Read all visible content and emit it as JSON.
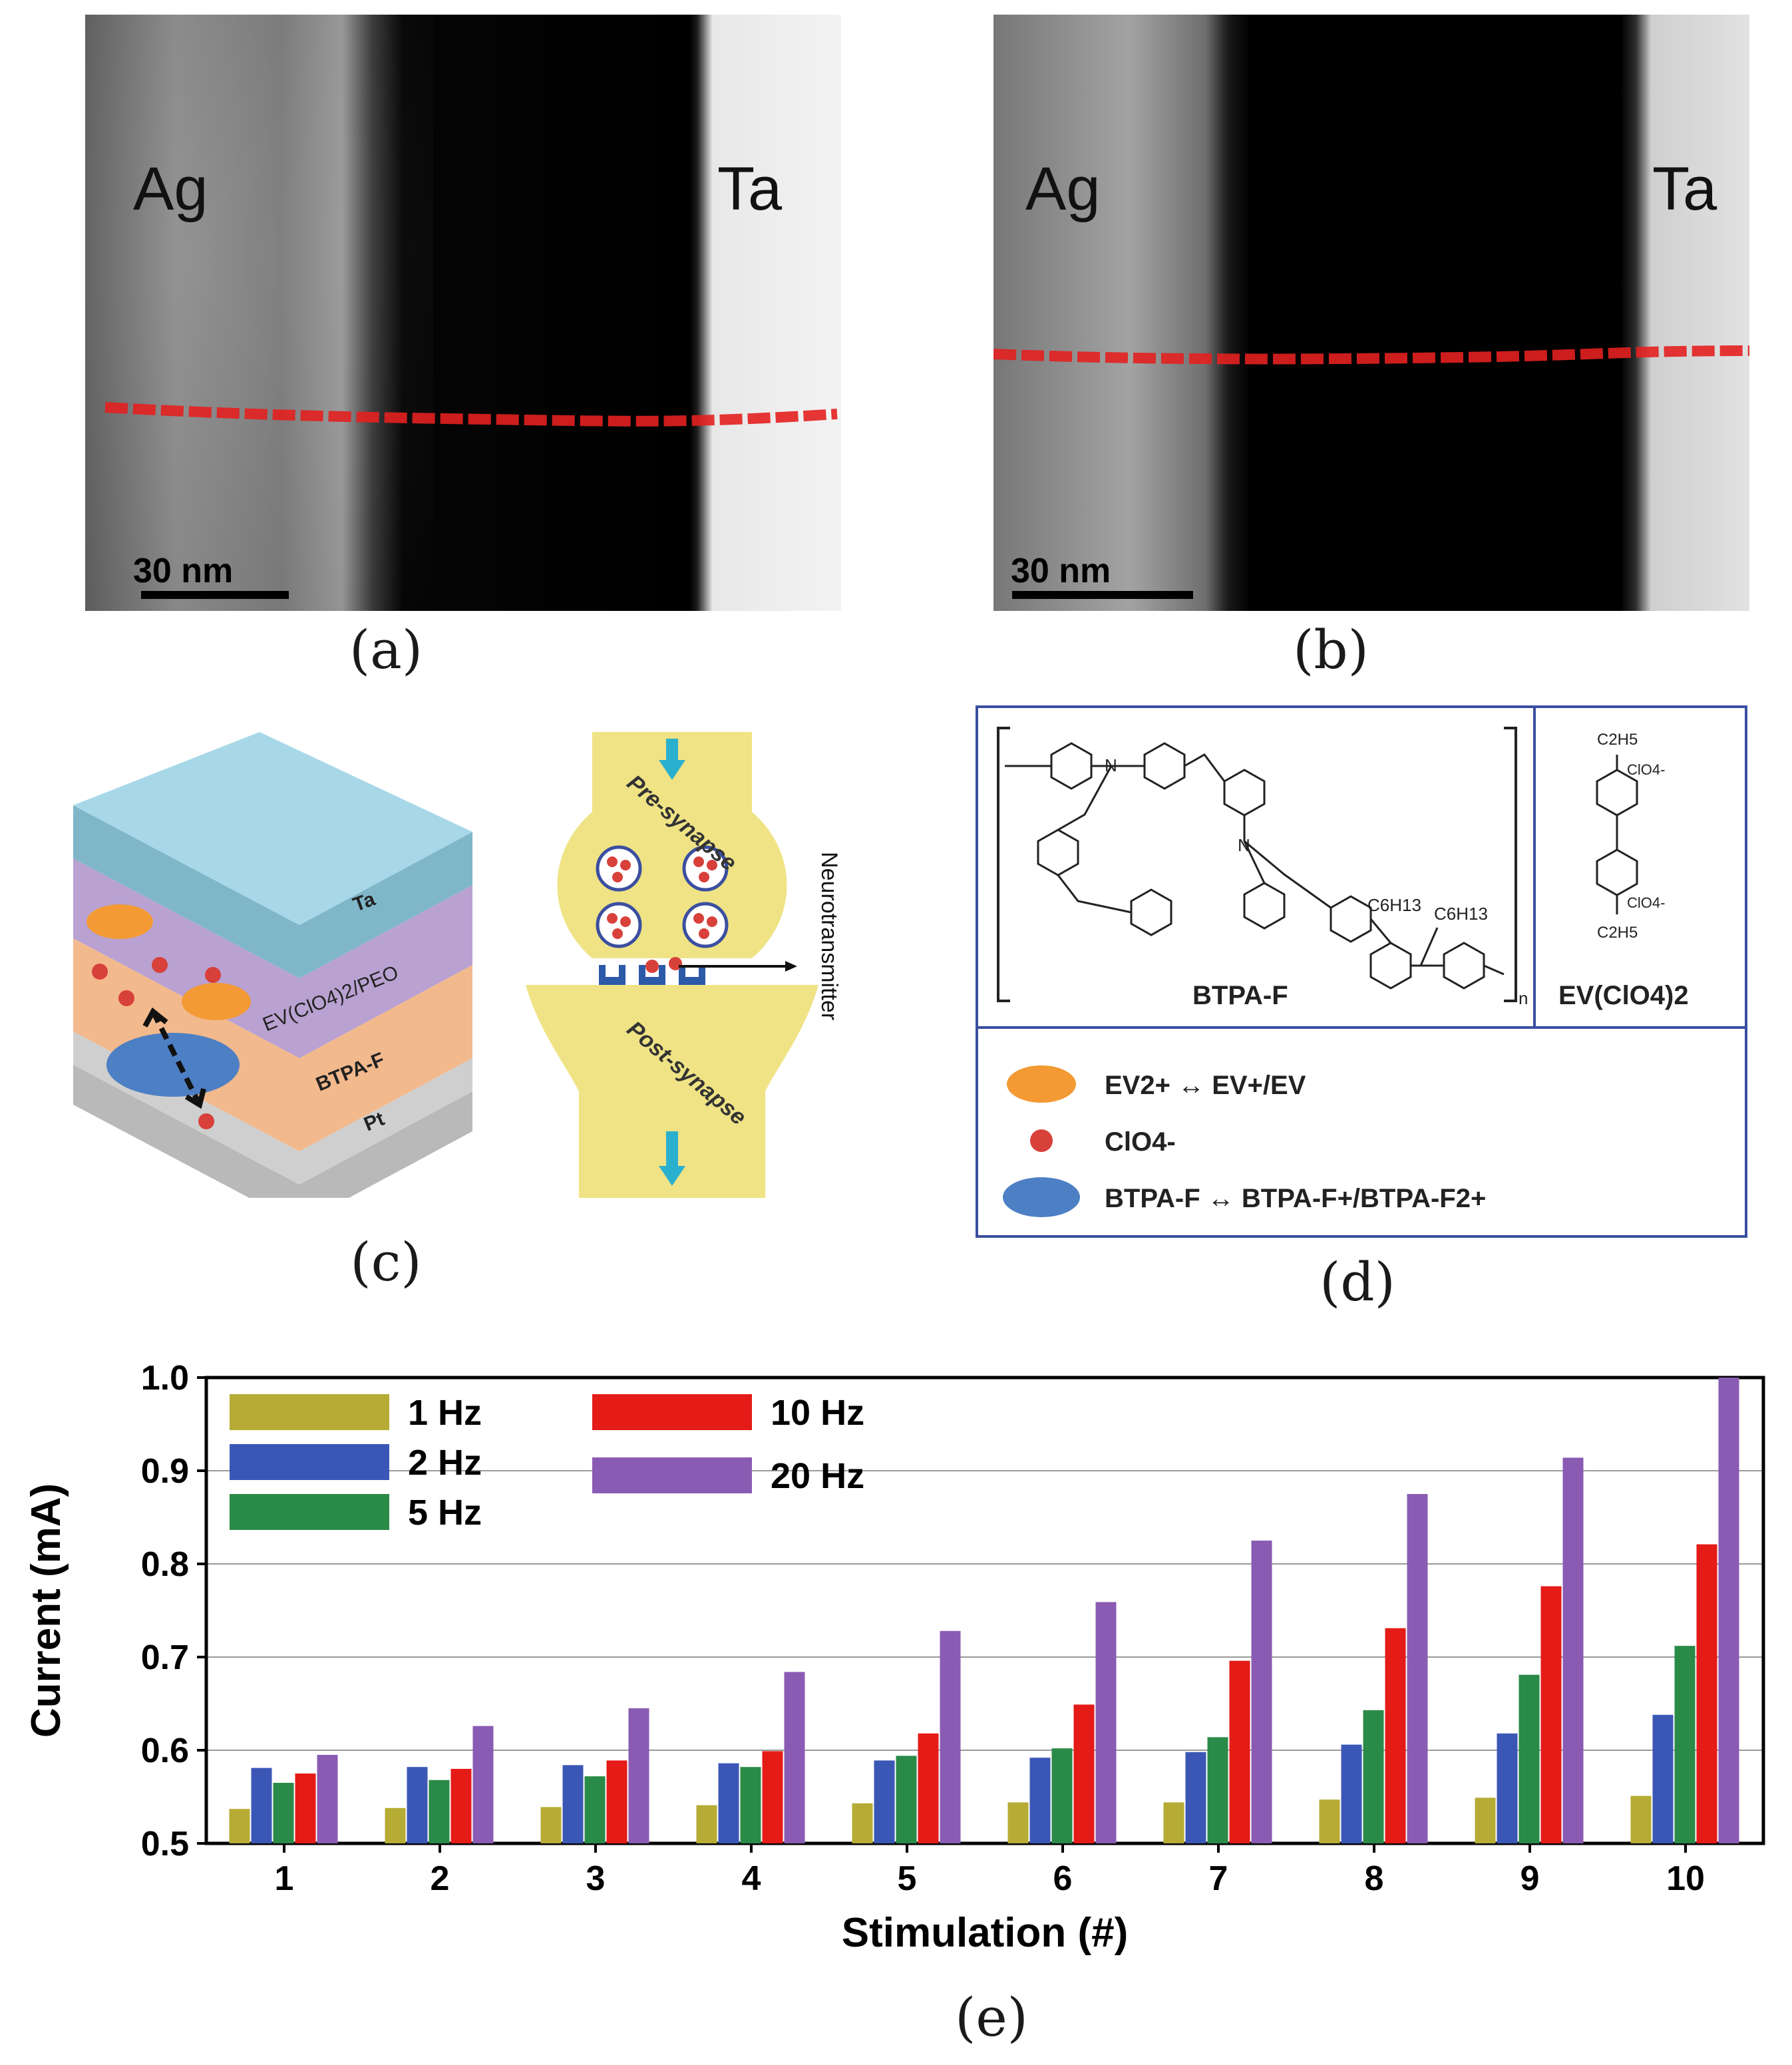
{
  "panel_a": {
    "caption": "(a)",
    "label_left": "Ag",
    "label_right": "Ta",
    "scale_bar": "30 nm"
  },
  "panel_b": {
    "caption": "(b)",
    "label_left": "Ag",
    "label_right": "Ta",
    "scale_bar": "30 nm"
  },
  "panel_c": {
    "caption": "(c)",
    "layers": [
      "Ta",
      "EV(ClO4)2/PEO",
      "BTPA-F",
      "Pt"
    ],
    "pre_synapse": "Pre-synapse",
    "post_synapse": "Post-synapse",
    "neurotransmitter": "Neurotransmitter",
    "colors": {
      "top": "#9fd3e3",
      "ta": "#8fbfd0",
      "peo": "#b9a3cf",
      "btpa": "#f3b88f",
      "pt": "#c9c9c9",
      "synapse": "#efe385"
    }
  },
  "panel_d": {
    "caption": "(d)",
    "polymer_name": "BTPA-F",
    "salt_name": "EV(ClO4)2",
    "sub_n": "n",
    "c6h13_a": "C6H13",
    "c6h13_b": "C6H13",
    "c2h5": "C2H5",
    "clo4": "ClO4-",
    "legend": [
      {
        "label": "EV2+ ↔ EV+/EV",
        "marker": "orange-cloud"
      },
      {
        "label": "ClO4-",
        "marker": "red-dot"
      },
      {
        "label": "BTPA-F ↔ BTPA-F+/BTPA-F2+",
        "marker": "blue-cloud"
      }
    ]
  },
  "panel_e": {
    "caption": "(e)"
  },
  "chart_data": {
    "type": "bar",
    "title": "",
    "xlabel": "Stimulation (#)",
    "ylabel": "Current (mA)",
    "ylim": [
      0.5,
      1.0
    ],
    "yticks": [
      "0.5",
      "0.6",
      "0.7",
      "0.8",
      "0.9",
      "1.0"
    ],
    "grid": true,
    "legend_position": "top-left",
    "categories": [
      "1",
      "2",
      "3",
      "4",
      "5",
      "6",
      "7",
      "8",
      "9",
      "10"
    ],
    "series": [
      {
        "name": "1 Hz",
        "color": "#b6ac35",
        "values": [
          0.537,
          0.538,
          0.539,
          0.541,
          0.543,
          0.544,
          0.544,
          0.547,
          0.549,
          0.551
        ]
      },
      {
        "name": "2 Hz",
        "color": "#3b57b6",
        "values": [
          0.581,
          0.582,
          0.584,
          0.586,
          0.589,
          0.592,
          0.598,
          0.606,
          0.618,
          0.638
        ]
      },
      {
        "name": "5 Hz",
        "color": "#2a8a47",
        "values": [
          0.565,
          0.568,
          0.572,
          0.582,
          0.594,
          0.602,
          0.614,
          0.643,
          0.681,
          0.712
        ]
      },
      {
        "name": "10 Hz",
        "color": "#e41b17",
        "values": [
          0.575,
          0.58,
          0.589,
          0.599,
          0.618,
          0.649,
          0.696,
          0.731,
          0.776,
          0.821
        ]
      },
      {
        "name": "20 Hz",
        "color": "#8a5bb3",
        "values": [
          0.595,
          0.626,
          0.645,
          0.684,
          0.728,
          0.759,
          0.825,
          0.875,
          0.914,
          1.0
        ]
      }
    ]
  }
}
